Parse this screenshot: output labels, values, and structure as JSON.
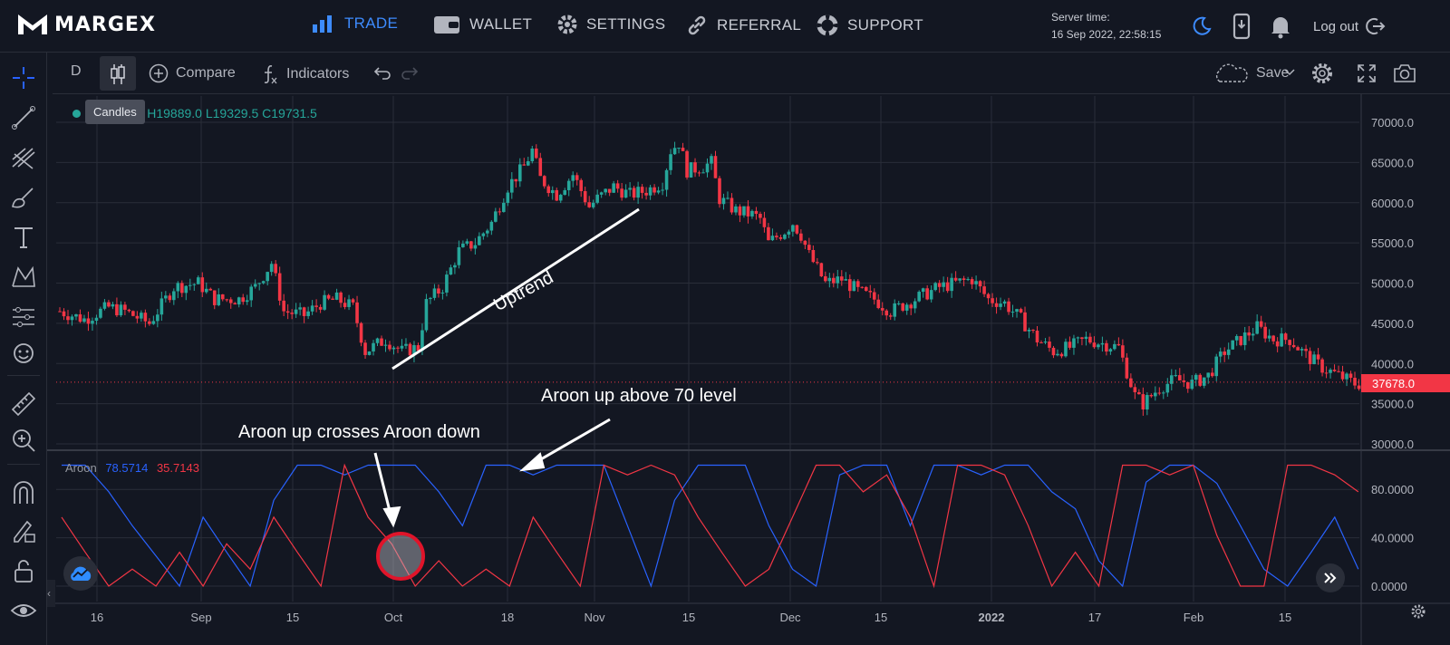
{
  "brand": {
    "name": "MARGEX"
  },
  "nav": {
    "trade": "TRADE",
    "wallet": "WALLET",
    "settings": "SETTINGS",
    "referral": "REFERRAL",
    "support": "SUPPORT"
  },
  "server": {
    "label": "Server time:",
    "value": "16 Sep 2022, 22:58:15"
  },
  "header": {
    "logout": "Log out"
  },
  "toolbar": {
    "interval": "D",
    "compare": "Compare",
    "indicators": "Indicators",
    "save": "Save",
    "tooltip": "Candles"
  },
  "ohlc": {
    "text": "6.5  H19889.0  L19329.5  C19731.5"
  },
  "aroon": {
    "name": "Aroon",
    "up": "78.5714",
    "down": "35.7143"
  },
  "price": {
    "current": "37678.0"
  },
  "annotations": {
    "uptrend": "Uptrend",
    "aroon_above": "Aroon up above 70 level",
    "aroon_cross": "Aroon up crosses Aroon down"
  },
  "colors": {
    "accent": "#3d8bfd",
    "up": "#26a69a",
    "down": "#f23645",
    "aroon_up": "#2962ff",
    "aroon_down": "#f23645",
    "highlight_circle": "#e0142a"
  },
  "chart_data": [
    {
      "type": "candlestick",
      "ylim": [
        30000,
        70000
      ],
      "y_ticks": [
        "70000.0",
        "65000.0",
        "60000.0",
        "55000.0",
        "50000.0",
        "45000.0",
        "40000.0",
        "35000.0",
        "30000.0"
      ],
      "x_ticks": [
        "16",
        "Sep",
        "15",
        "Oct",
        "18",
        "Nov",
        "15",
        "Dec",
        "15",
        "2022",
        "17",
        "Feb",
        "15"
      ],
      "close_path": [
        [
          0,
          46500
        ],
        [
          6,
          45500
        ],
        [
          12,
          47000
        ],
        [
          16,
          46500
        ],
        [
          22,
          45000
        ],
        [
          28,
          49500
        ],
        [
          34,
          50000
        ],
        [
          38,
          48000
        ],
        [
          44,
          48000
        ],
        [
          48,
          49500
        ],
        [
          52,
          52500
        ],
        [
          55,
          46500
        ],
        [
          60,
          46000
        ],
        [
          64,
          47500
        ],
        [
          68,
          48000
        ],
        [
          72,
          47000
        ],
        [
          75,
          41500
        ],
        [
          80,
          43000
        ],
        [
          84,
          41500
        ],
        [
          88,
          42000
        ],
        [
          90,
          47500
        ],
        [
          94,
          49500
        ],
        [
          98,
          54000
        ],
        [
          102,
          55000
        ],
        [
          106,
          57500
        ],
        [
          110,
          62000
        ],
        [
          114,
          64500
        ],
        [
          116,
          66500
        ],
        [
          118,
          63000
        ],
        [
          122,
          61000
        ],
        [
          126,
          63500
        ],
        [
          130,
          59500
        ],
        [
          132,
          60500
        ],
        [
          136,
          62000
        ],
        [
          140,
          61000
        ],
        [
          144,
          61500
        ],
        [
          148,
          62500
        ],
        [
          150,
          66500
        ],
        [
          152,
          67500
        ],
        [
          154,
          64000
        ],
        [
          158,
          64500
        ],
        [
          160,
          65000
        ],
        [
          162,
          60500
        ],
        [
          166,
          59000
        ],
        [
          170,
          58500
        ],
        [
          172,
          58000
        ],
        [
          174,
          55000
        ],
        [
          178,
          56500
        ],
        [
          180,
          57500
        ],
        [
          182,
          56000
        ],
        [
          184,
          53500
        ],
        [
          188,
          50000
        ],
        [
          192,
          50500
        ],
        [
          196,
          49000
        ],
        [
          200,
          48000
        ],
        [
          204,
          46500
        ],
        [
          208,
          47500
        ],
        [
          212,
          48500
        ],
        [
          216,
          49500
        ],
        [
          220,
          50000
        ],
        [
          224,
          50500
        ],
        [
          228,
          48000
        ],
        [
          232,
          47500
        ],
        [
          236,
          45500
        ],
        [
          240,
          43000
        ],
        [
          244,
          41500
        ],
        [
          248,
          42000
        ],
        [
          252,
          43000
        ],
        [
          256,
          42500
        ],
        [
          260,
          42000
        ],
        [
          264,
          36000
        ],
        [
          266,
          35000
        ],
        [
          270,
          37000
        ],
        [
          274,
          38000
        ],
        [
          278,
          37500
        ],
        [
          282,
          38500
        ],
        [
          286,
          41500
        ],
        [
          290,
          43000
        ],
        [
          294,
          44500
        ],
        [
          298,
          43000
        ],
        [
          302,
          43000
        ],
        [
          306,
          41000
        ],
        [
          310,
          39500
        ],
        [
          314,
          38500
        ],
        [
          318,
          37500
        ]
      ]
    },
    {
      "type": "line",
      "ylim": [
        0,
        100
      ],
      "y_ticks": [
        "80.0000",
        "40.0000",
        "0.0000"
      ],
      "series": [
        {
          "name": "Aroon up",
          "values": [
            100,
            100,
            78,
            50,
            25,
            0,
            57,
            28,
            0,
            71,
            100,
            100,
            92,
            100,
            100,
            100,
            78,
            50,
            100,
            100,
            92,
            100,
            100,
            100,
            50,
            0,
            71,
            100,
            100,
            100,
            50,
            14,
            0,
            92,
            100,
            100,
            50,
            100,
            100,
            92,
            100,
            100,
            78,
            64,
            21,
            0,
            86,
            100,
            100,
            85,
            50,
            14,
            0,
            28,
            57,
            14
          ]
        },
        {
          "name": "Aroon down",
          "values": [
            57,
            28,
            0,
            14,
            0,
            28,
            0,
            35,
            14,
            57,
            28,
            0,
            100,
            57,
            35,
            0,
            21,
            0,
            14,
            0,
            57,
            28,
            0,
            100,
            92,
            100,
            92,
            57,
            28,
            0,
            14,
            57,
            100,
            100,
            78,
            92,
            57,
            0,
            100,
            100,
            92,
            50,
            0,
            28,
            0,
            100,
            100,
            92,
            100,
            42,
            0,
            0,
            100,
            100,
            92,
            78
          ]
        }
      ]
    }
  ]
}
